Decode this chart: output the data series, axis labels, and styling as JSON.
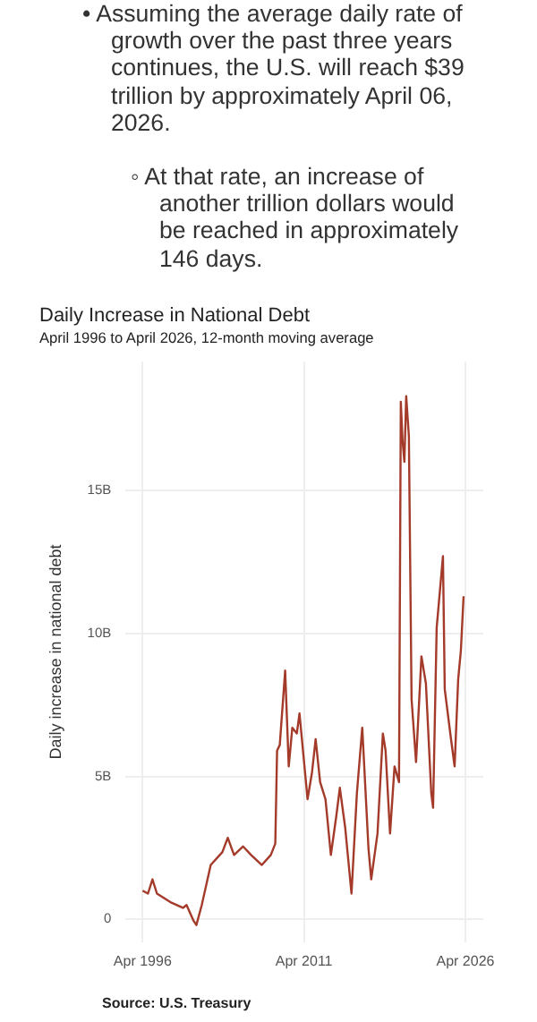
{
  "chart_data": {
    "type": "line",
    "title": "Daily Increase in National Debt",
    "subtitle": "April 1996 to April 2026, 12-month moving average",
    "ylabel": "Daily increase in national debt",
    "annotations": [
      "• Assuming the average daily rate of growth over the past three years continues, the U.S. will reach $39 trillion by approximately April 06, 2026.",
      "◦ At that rate, an increase of another trillion dollars would be reached in approximately 146 days.",
      "Source: U.S. Treasury"
    ],
    "series": [
      {
        "color": "#a33a2a",
        "x": [
          "1996-04",
          "1996-10",
          "1997-03",
          "1997-08",
          "1998-11",
          "2000-01",
          "2000-05",
          "2001-01",
          "2001-04",
          "2001-10",
          "2002-08",
          "2003-09",
          "2004-03",
          "2004-10",
          "2005-08",
          "2006-05",
          "2007-05",
          "2008-03",
          "2008-08",
          "2008-10",
          "2009-01",
          "2009-07",
          "2009-11",
          "2010-03",
          "2010-08",
          "2010-11",
          "2011-08",
          "2012-01",
          "2012-05",
          "2012-10",
          "2013-04",
          "2013-10",
          "2014-04",
          "2014-08",
          "2015-02",
          "2015-09",
          "2016-03",
          "2016-09",
          "2017-04",
          "2017-07",
          "2018-02",
          "2018-08",
          "2018-11",
          "2019-04",
          "2019-09",
          "2020-02",
          "2020-04",
          "2020-06",
          "2020-08",
          "2020-10",
          "2021-01",
          "2021-04",
          "2021-09",
          "2022-03",
          "2022-08",
          "2023-02",
          "2023-04",
          "2023-08",
          "2024-03",
          "2024-05",
          "2024-12",
          "2025-04",
          "2025-08",
          "2025-11",
          "2026-02"
        ],
        "values": [
          1.0,
          0.9,
          1.4,
          0.9,
          0.6,
          0.4,
          0.5,
          -0.06,
          -0.2,
          0.5,
          1.9,
          2.35,
          2.85,
          2.25,
          2.55,
          2.25,
          1.9,
          2.25,
          2.65,
          5.9,
          6.1,
          8.7,
          5.35,
          6.7,
          6.5,
          7.2,
          4.2,
          5.15,
          6.3,
          4.8,
          4.2,
          2.25,
          3.6,
          4.6,
          3.2,
          0.9,
          4.4,
          6.7,
          2.45,
          1.4,
          3.0,
          6.5,
          5.9,
          3.0,
          5.35,
          4.8,
          18.1,
          16.7,
          16.0,
          18.3,
          16.9,
          7.7,
          5.5,
          9.2,
          8.25,
          4.4,
          3.9,
          10.2,
          12.7,
          8.05,
          6.3,
          5.35,
          8.4,
          9.4,
          11.3
        ]
      }
    ],
    "xlim": [
      "1994-09",
      "2027-12"
    ],
    "xticks": [
      {
        "value": "1996-04",
        "label": "Apr 1996"
      },
      {
        "value": "2011-04",
        "label": "Apr 2011"
      },
      {
        "value": "2026-04",
        "label": "Apr 2026"
      }
    ],
    "ylim": [
      -0.8,
      19.5
    ],
    "yticks": [
      0,
      {
        "value": 5,
        "label": "5B"
      },
      {
        "value": 10,
        "label": "10B"
      },
      {
        "value": 15,
        "label": "15B"
      }
    ],
    "grid": true,
    "marker": "none",
    "line_style": "solid"
  }
}
